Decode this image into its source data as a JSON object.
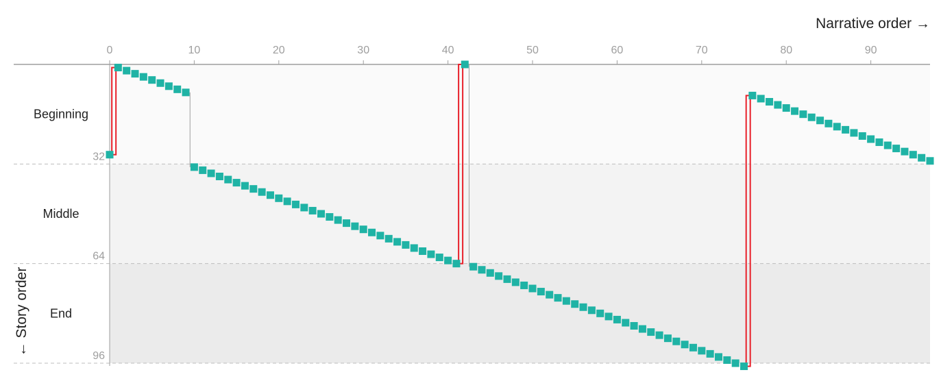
{
  "chart_data": {
    "type": "scatter",
    "x_axis_title": "Narrative order →",
    "y_axis_title": "← Story order",
    "x_ticks": [
      0,
      10,
      20,
      30,
      40,
      50,
      60,
      70,
      80,
      90
    ],
    "y_ticks": [
      32,
      64,
      96
    ],
    "xlim": [
      0,
      97
    ],
    "ylim": [
      0,
      96
    ],
    "bands": [
      {
        "label": "Beginning",
        "from": 0,
        "to": 32,
        "color": "#fafafa"
      },
      {
        "label": "Middle",
        "from": 32,
        "to": 64,
        "color": "#f3f3f3"
      },
      {
        "label": "End",
        "from": 64,
        "to": 96,
        "color": "#ebebeb"
      }
    ],
    "point_color": "#1fb3a5",
    "jump_color": "#e8202a",
    "connector_color": "#9e9e9e",
    "segments": [
      {
        "x_start": 0,
        "y_start": 29,
        "count": 1
      },
      {
        "x_start": 1,
        "y_start": 1,
        "count": 9
      },
      {
        "x_start": 10,
        "y_start": 33,
        "count": 32
      },
      {
        "x_start": 42,
        "y_start": 0,
        "count": 1
      },
      {
        "x_start": 43,
        "y_start": 65,
        "count": 33
      },
      {
        "x_start": 76,
        "y_start": 10,
        "count": 22
      }
    ]
  }
}
